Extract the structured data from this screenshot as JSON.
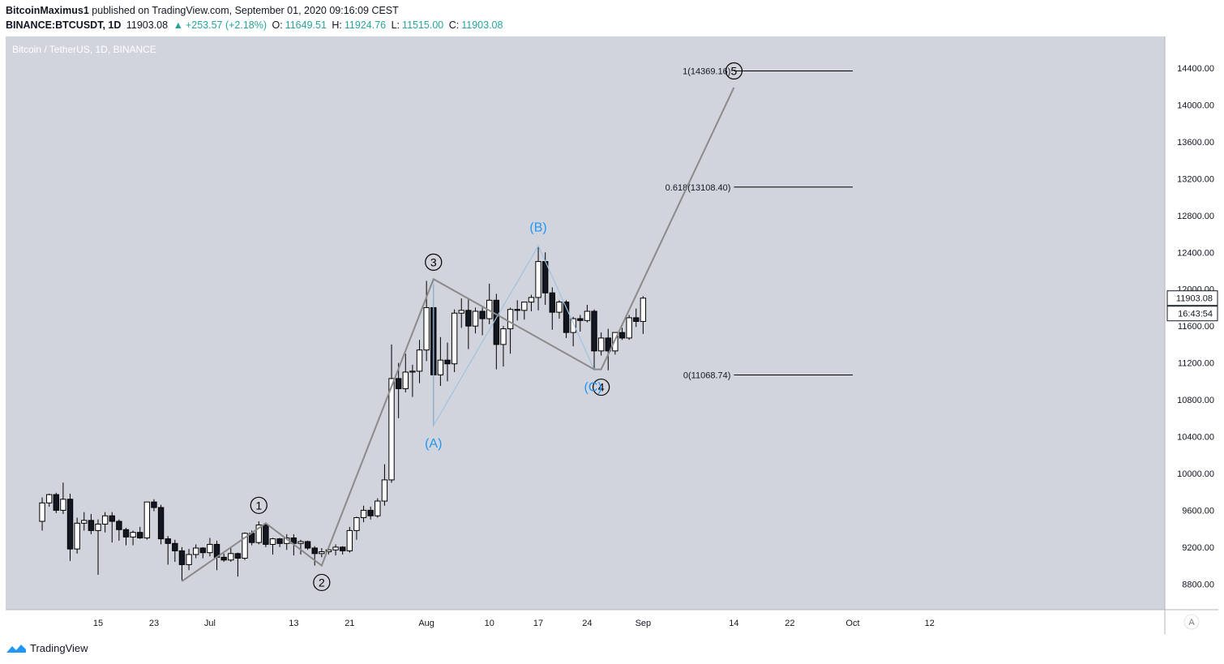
{
  "header": {
    "author": "BitcoinMaximus1",
    "published": "published on TradingView.com, September 01, 2020 09:16:09 CEST",
    "symbol": "BINANCE:BTCUSDT, 1D",
    "last": "11903.08",
    "change": "+253.57 (+2.18%)",
    "o_label": "O:",
    "o_value": "11649.51",
    "h_label": "H:",
    "h_value": "11924.76",
    "l_label": "L:",
    "l_value": "11515.00",
    "c_label": "C:",
    "c_value": "11903.08"
  },
  "footer": {
    "brand": "TradingView"
  },
  "colors": {
    "background": "#d1d4dc",
    "candle_border": "#000000",
    "up_fill": "#ffffff",
    "down_fill": "#131722",
    "wave_line": "#8a8a8a",
    "abc_line": "#9fc2e0",
    "abc_label": "#2196f3",
    "price_axis_bg": "#ffffff"
  },
  "chart_data": {
    "type": "candlestick",
    "title": "Bitcoin / TetherUS, 1D, BINANCE",
    "ylim": [
      8600,
      14800
    ],
    "y_ticks": [
      "14400.00",
      "14000.00",
      "13600.00",
      "13200.00",
      "12800.00",
      "12400.00",
      "12000.00",
      "11600.00",
      "11200.00",
      "10800.00",
      "10400.00",
      "10000.00",
      "9600.00",
      "9200.00",
      "8800.00"
    ],
    "x_ticks": [
      {
        "label": "15",
        "date": "2020-06-15"
      },
      {
        "label": "23",
        "date": "2020-06-23"
      },
      {
        "label": "Jul",
        "date": "2020-07-01"
      },
      {
        "label": "13",
        "date": "2020-07-13"
      },
      {
        "label": "21",
        "date": "2020-07-21"
      },
      {
        "label": "Aug",
        "date": "2020-08-01"
      },
      {
        "label": "10",
        "date": "2020-08-10"
      },
      {
        "label": "17",
        "date": "2020-08-17"
      },
      {
        "label": "24",
        "date": "2020-08-24"
      },
      {
        "label": "Sep",
        "date": "2020-09-01"
      },
      {
        "label": "14",
        "date": "2020-09-14"
      },
      {
        "label": "22",
        "date": "2020-09-22"
      },
      {
        "label": "Oct",
        "date": "2020-10-01"
      },
      {
        "label": "12",
        "date": "2020-10-12"
      }
    ],
    "last_price_label": "11903.08",
    "countdown_label": "16:43:54",
    "axis_mode_label": "A",
    "ohlc": [
      {
        "date": "2020-06-07",
        "o": 9480,
        "h": 9740,
        "l": 9380,
        "c": 9680
      },
      {
        "date": "2020-06-08",
        "o": 9680,
        "h": 9780,
        "l": 9640,
        "c": 9770
      },
      {
        "date": "2020-06-09",
        "o": 9770,
        "h": 9790,
        "l": 9570,
        "c": 9600
      },
      {
        "date": "2020-06-10",
        "o": 9600,
        "h": 9900,
        "l": 9560,
        "c": 9720
      },
      {
        "date": "2020-06-11",
        "o": 9720,
        "h": 9780,
        "l": 9050,
        "c": 9180
      },
      {
        "date": "2020-06-12",
        "o": 9180,
        "h": 9520,
        "l": 9130,
        "c": 9460
      },
      {
        "date": "2020-06-13",
        "o": 9460,
        "h": 9580,
        "l": 9380,
        "c": 9490
      },
      {
        "date": "2020-06-14",
        "o": 9490,
        "h": 9560,
        "l": 9340,
        "c": 9380
      },
      {
        "date": "2020-06-15",
        "o": 9380,
        "h": 9500,
        "l": 8900,
        "c": 9450
      },
      {
        "date": "2020-06-16",
        "o": 9450,
        "h": 9580,
        "l": 9360,
        "c": 9540
      },
      {
        "date": "2020-06-17",
        "o": 9540,
        "h": 9580,
        "l": 9250,
        "c": 9480
      },
      {
        "date": "2020-06-18",
        "o": 9480,
        "h": 9500,
        "l": 9270,
        "c": 9390
      },
      {
        "date": "2020-06-19",
        "o": 9390,
        "h": 9410,
        "l": 9220,
        "c": 9310
      },
      {
        "date": "2020-06-20",
        "o": 9310,
        "h": 9380,
        "l": 9220,
        "c": 9360
      },
      {
        "date": "2020-06-21",
        "o": 9360,
        "h": 9420,
        "l": 9290,
        "c": 9300
      },
      {
        "date": "2020-06-22",
        "o": 9300,
        "h": 9680,
        "l": 9280,
        "c": 9690
      },
      {
        "date": "2020-06-23",
        "o": 9690,
        "h": 9720,
        "l": 9590,
        "c": 9630
      },
      {
        "date": "2020-06-24",
        "o": 9630,
        "h": 9660,
        "l": 9230,
        "c": 9290
      },
      {
        "date": "2020-06-25",
        "o": 9290,
        "h": 9320,
        "l": 9010,
        "c": 9240
      },
      {
        "date": "2020-06-26",
        "o": 9240,
        "h": 9280,
        "l": 9040,
        "c": 9160
      },
      {
        "date": "2020-06-27",
        "o": 9160,
        "h": 9200,
        "l": 8840,
        "c": 9010
      },
      {
        "date": "2020-06-28",
        "o": 9010,
        "h": 9180,
        "l": 8950,
        "c": 9120
      },
      {
        "date": "2020-06-29",
        "o": 9120,
        "h": 9230,
        "l": 9080,
        "c": 9190
      },
      {
        "date": "2020-06-30",
        "o": 9190,
        "h": 9200,
        "l": 9080,
        "c": 9140
      },
      {
        "date": "2020-07-01",
        "o": 9140,
        "h": 9300,
        "l": 9100,
        "c": 9230
      },
      {
        "date": "2020-07-02",
        "o": 9230,
        "h": 9270,
        "l": 8950,
        "c": 9090
      },
      {
        "date": "2020-07-03",
        "o": 9090,
        "h": 9130,
        "l": 9040,
        "c": 9060
      },
      {
        "date": "2020-07-04",
        "o": 9060,
        "h": 9190,
        "l": 9040,
        "c": 9130
      },
      {
        "date": "2020-07-05",
        "o": 9130,
        "h": 9140,
        "l": 8880,
        "c": 9080
      },
      {
        "date": "2020-07-06",
        "o": 9080,
        "h": 9360,
        "l": 9060,
        "c": 9350
      },
      {
        "date": "2020-07-07",
        "o": 9350,
        "h": 9380,
        "l": 9220,
        "c": 9250
      },
      {
        "date": "2020-07-08",
        "o": 9250,
        "h": 9480,
        "l": 9230,
        "c": 9440
      },
      {
        "date": "2020-07-09",
        "o": 9440,
        "h": 9450,
        "l": 9200,
        "c": 9230
      },
      {
        "date": "2020-07-10",
        "o": 9230,
        "h": 9300,
        "l": 9120,
        "c": 9290
      },
      {
        "date": "2020-07-11",
        "o": 9290,
        "h": 9300,
        "l": 9200,
        "c": 9240
      },
      {
        "date": "2020-07-12",
        "o": 9240,
        "h": 9340,
        "l": 9170,
        "c": 9300
      },
      {
        "date": "2020-07-13",
        "o": 9300,
        "h": 9340,
        "l": 9110,
        "c": 9240
      },
      {
        "date": "2020-07-14",
        "o": 9240,
        "h": 9280,
        "l": 9120,
        "c": 9260
      },
      {
        "date": "2020-07-15",
        "o": 9260,
        "h": 9270,
        "l": 9170,
        "c": 9190
      },
      {
        "date": "2020-07-16",
        "o": 9190,
        "h": 9210,
        "l": 9000,
        "c": 9130
      },
      {
        "date": "2020-07-17",
        "o": 9130,
        "h": 9190,
        "l": 9090,
        "c": 9150
      },
      {
        "date": "2020-07-18",
        "o": 9150,
        "h": 9190,
        "l": 9120,
        "c": 9170
      },
      {
        "date": "2020-07-19",
        "o": 9170,
        "h": 9230,
        "l": 9110,
        "c": 9200
      },
      {
        "date": "2020-07-20",
        "o": 9200,
        "h": 9210,
        "l": 9120,
        "c": 9160
      },
      {
        "date": "2020-07-21",
        "o": 9160,
        "h": 9420,
        "l": 9140,
        "c": 9380
      },
      {
        "date": "2020-07-22",
        "o": 9380,
        "h": 9530,
        "l": 9280,
        "c": 9520
      },
      {
        "date": "2020-07-23",
        "o": 9520,
        "h": 9650,
        "l": 9470,
        "c": 9600
      },
      {
        "date": "2020-07-24",
        "o": 9600,
        "h": 9640,
        "l": 9500,
        "c": 9540
      },
      {
        "date": "2020-07-25",
        "o": 9540,
        "h": 9730,
        "l": 9520,
        "c": 9700
      },
      {
        "date": "2020-07-26",
        "o": 9700,
        "h": 10100,
        "l": 9650,
        "c": 9930
      },
      {
        "date": "2020-07-27",
        "o": 9930,
        "h": 11400,
        "l": 9900,
        "c": 11030
      },
      {
        "date": "2020-07-28",
        "o": 11030,
        "h": 11200,
        "l": 10600,
        "c": 10920
      },
      {
        "date": "2020-07-29",
        "o": 10920,
        "h": 11300,
        "l": 10880,
        "c": 11100
      },
      {
        "date": "2020-07-30",
        "o": 11100,
        "h": 11180,
        "l": 10830,
        "c": 11110
      },
      {
        "date": "2020-07-31",
        "o": 11110,
        "h": 11450,
        "l": 10980,
        "c": 11340
      },
      {
        "date": "2020-08-01",
        "o": 11340,
        "h": 12090,
        "l": 11220,
        "c": 11800
      },
      {
        "date": "2020-08-02",
        "o": 11800,
        "h": 12050,
        "l": 10520,
        "c": 11070
      },
      {
        "date": "2020-08-03",
        "o": 11070,
        "h": 11480,
        "l": 10950,
        "c": 11230
      },
      {
        "date": "2020-08-04",
        "o": 11230,
        "h": 11420,
        "l": 11000,
        "c": 11190
      },
      {
        "date": "2020-08-05",
        "o": 11190,
        "h": 11780,
        "l": 11100,
        "c": 11740
      },
      {
        "date": "2020-08-06",
        "o": 11740,
        "h": 11900,
        "l": 11580,
        "c": 11770
      },
      {
        "date": "2020-08-07",
        "o": 11770,
        "h": 11900,
        "l": 11350,
        "c": 11600
      },
      {
        "date": "2020-08-08",
        "o": 11600,
        "h": 11800,
        "l": 11520,
        "c": 11760
      },
      {
        "date": "2020-08-09",
        "o": 11760,
        "h": 11800,
        "l": 11500,
        "c": 11680
      },
      {
        "date": "2020-08-10",
        "o": 11680,
        "h": 12060,
        "l": 11620,
        "c": 11880
      },
      {
        "date": "2020-08-11",
        "o": 11880,
        "h": 11950,
        "l": 11130,
        "c": 11400
      },
      {
        "date": "2020-08-12",
        "o": 11400,
        "h": 11600,
        "l": 11160,
        "c": 11570
      },
      {
        "date": "2020-08-13",
        "o": 11570,
        "h": 11800,
        "l": 11300,
        "c": 11780
      },
      {
        "date": "2020-08-14",
        "o": 11780,
        "h": 11880,
        "l": 11660,
        "c": 11770
      },
      {
        "date": "2020-08-15",
        "o": 11770,
        "h": 11840,
        "l": 11670,
        "c": 11860
      },
      {
        "date": "2020-08-16",
        "o": 11860,
        "h": 11940,
        "l": 11760,
        "c": 11910
      },
      {
        "date": "2020-08-17",
        "o": 11910,
        "h": 12470,
        "l": 11770,
        "c": 12300
      },
      {
        "date": "2020-08-18",
        "o": 12300,
        "h": 12400,
        "l": 11830,
        "c": 11960
      },
      {
        "date": "2020-08-19",
        "o": 11960,
        "h": 12020,
        "l": 11560,
        "c": 11750
      },
      {
        "date": "2020-08-20",
        "o": 11750,
        "h": 11880,
        "l": 11680,
        "c": 11860
      },
      {
        "date": "2020-08-21",
        "o": 11860,
        "h": 11880,
        "l": 11470,
        "c": 11530
      },
      {
        "date": "2020-08-22",
        "o": 11530,
        "h": 11700,
        "l": 11380,
        "c": 11680
      },
      {
        "date": "2020-08-23",
        "o": 11680,
        "h": 11720,
        "l": 11540,
        "c": 11660
      },
      {
        "date": "2020-08-24",
        "o": 11660,
        "h": 11830,
        "l": 11640,
        "c": 11760
      },
      {
        "date": "2020-08-25",
        "o": 11760,
        "h": 11780,
        "l": 11140,
        "c": 11330
      },
      {
        "date": "2020-08-26",
        "o": 11330,
        "h": 11530,
        "l": 11280,
        "c": 11470
      },
      {
        "date": "2020-08-27",
        "o": 11470,
        "h": 11570,
        "l": 11120,
        "c": 11330
      },
      {
        "date": "2020-08-28",
        "o": 11330,
        "h": 11500,
        "l": 11290,
        "c": 11530
      },
      {
        "date": "2020-08-29",
        "o": 11530,
        "h": 11580,
        "l": 11450,
        "c": 11470
      },
      {
        "date": "2020-08-30",
        "o": 11470,
        "h": 11720,
        "l": 11450,
        "c": 11690
      },
      {
        "date": "2020-08-31",
        "o": 11690,
        "h": 11790,
        "l": 11590,
        "c": 11650
      },
      {
        "date": "2020-09-01",
        "o": 11650,
        "h": 11925,
        "l": 11515,
        "c": 11903
      }
    ],
    "wave_labels": [
      {
        "text": "1",
        "date": "2020-07-08",
        "price": 9460,
        "place": "above"
      },
      {
        "text": "2",
        "date": "2020-07-17",
        "price": 9010,
        "place": "below"
      },
      {
        "text": "3",
        "date": "2020-08-02",
        "price": 12100,
        "place": "above"
      },
      {
        "text": "4",
        "date": "2020-08-26",
        "price": 11130,
        "place": "below"
      },
      {
        "text": "5",
        "date": "2020-09-14",
        "price": 14369,
        "place": "center"
      }
    ],
    "abc_labels": [
      {
        "text": "(A)",
        "date": "2020-08-02",
        "price": 10520,
        "place": "below"
      },
      {
        "text": "(B)",
        "date": "2020-08-17",
        "price": 12470,
        "place": "above"
      },
      {
        "text": "(C)",
        "date": "2020-08-26",
        "price": 11130,
        "place": "below"
      }
    ],
    "wave_path": [
      {
        "date": "2020-06-27",
        "price": 8830
      },
      {
        "date": "2020-07-09",
        "price": 9460
      },
      {
        "date": "2020-07-17",
        "price": 9000
      },
      {
        "date": "2020-08-02",
        "price": 12110
      },
      {
        "date": "2020-08-25",
        "price": 11130
      },
      {
        "date": "2020-08-26",
        "price": 11130
      },
      {
        "date": "2020-09-14",
        "price": 14190
      }
    ],
    "abc_path": [
      {
        "date": "2020-08-02",
        "price": 12110
      },
      {
        "date": "2020-08-02",
        "price": 10520
      },
      {
        "date": "2020-08-17",
        "price": 12470
      },
      {
        "date": "2020-08-25",
        "price": 11130
      }
    ],
    "fib_levels": [
      {
        "label": "1(14369.16)",
        "price": 14369.16
      },
      {
        "label": "0.618(13108.40)",
        "price": 13108.4
      },
      {
        "label": "0(11068.74)",
        "price": 11068.74
      }
    ],
    "fib_range": [
      "2020-09-14",
      "2020-10-01"
    ]
  }
}
